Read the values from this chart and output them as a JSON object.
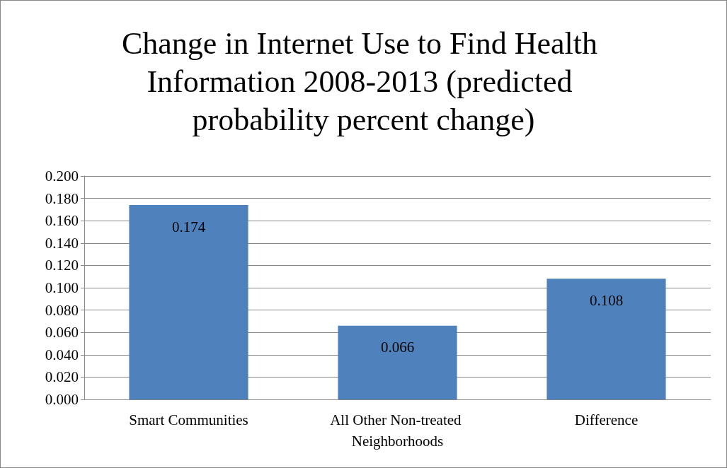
{
  "chart_data": {
    "type": "bar",
    "title": "Change in Internet Use to Find Health Information 2008-2013 (predicted probability percent change)",
    "categories": [
      "Smart Communities",
      "All Other Non-treated Neighborhoods",
      "Difference"
    ],
    "values": [
      0.174,
      0.066,
      0.108
    ],
    "color": "#4f81bd",
    "ylim": [
      0,
      0.2
    ],
    "yticks": [
      {
        "value": 0,
        "label": "0.000"
      },
      {
        "value": 0.02,
        "label": "0.020"
      },
      {
        "value": 0.04,
        "label": "0.040"
      },
      {
        "value": 0.06,
        "label": "0.060"
      },
      {
        "value": 0.08,
        "label": "0.080"
      },
      {
        "value": 0.1,
        "label": "0.100"
      },
      {
        "value": 0.12,
        "label": "0.120"
      },
      {
        "value": 0.14,
        "label": "0.140"
      },
      {
        "value": 0.16,
        "label": "0.160"
      },
      {
        "value": 0.18,
        "label": "0.180"
      },
      {
        "value": 0.2,
        "label": "0.200"
      }
    ],
    "grid": true,
    "data_labels": true
  }
}
